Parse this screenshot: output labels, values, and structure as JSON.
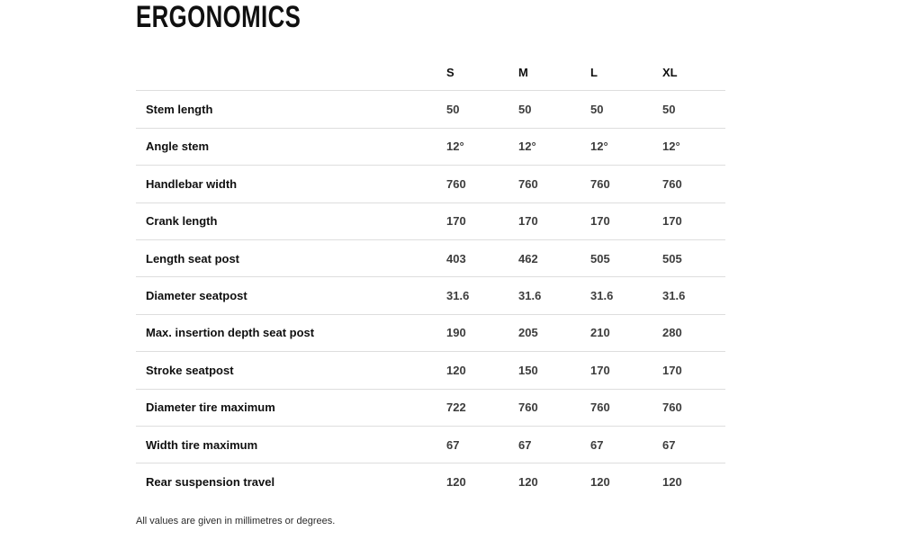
{
  "title": "ERGONOMICS",
  "table": {
    "columns": [
      "S",
      "M",
      "L",
      "XL"
    ],
    "rows": [
      {
        "label": "Stem length",
        "values": [
          "50",
          "50",
          "50",
          "50"
        ]
      },
      {
        "label": "Angle stem",
        "values": [
          "12°",
          "12°",
          "12°",
          "12°"
        ]
      },
      {
        "label": "Handlebar width",
        "values": [
          "760",
          "760",
          "760",
          "760"
        ]
      },
      {
        "label": "Crank length",
        "values": [
          "170",
          "170",
          "170",
          "170"
        ]
      },
      {
        "label": "Length seat post",
        "values": [
          "403",
          "462",
          "505",
          "505"
        ]
      },
      {
        "label": "Diameter seatpost",
        "values": [
          "31.6",
          "31.6",
          "31.6",
          "31.6"
        ]
      },
      {
        "label": "Max. insertion depth seat post",
        "values": [
          "190",
          "205",
          "210",
          "280"
        ]
      },
      {
        "label": "Stroke seatpost",
        "values": [
          "120",
          "150",
          "170",
          "170"
        ]
      },
      {
        "label": "Diameter tire maximum",
        "values": [
          "722",
          "760",
          "760",
          "760"
        ]
      },
      {
        "label": "Width tire maximum",
        "values": [
          "67",
          "67",
          "67",
          "67"
        ]
      },
      {
        "label": "Rear suspension travel",
        "values": [
          "120",
          "120",
          "120",
          "120"
        ]
      }
    ]
  },
  "footnote": "All values are given in millimetres or degrees.",
  "colors": {
    "text_primary": "#101010",
    "text_values": "#3d3d3d",
    "divider": "#dedede",
    "background": "#ffffff"
  }
}
